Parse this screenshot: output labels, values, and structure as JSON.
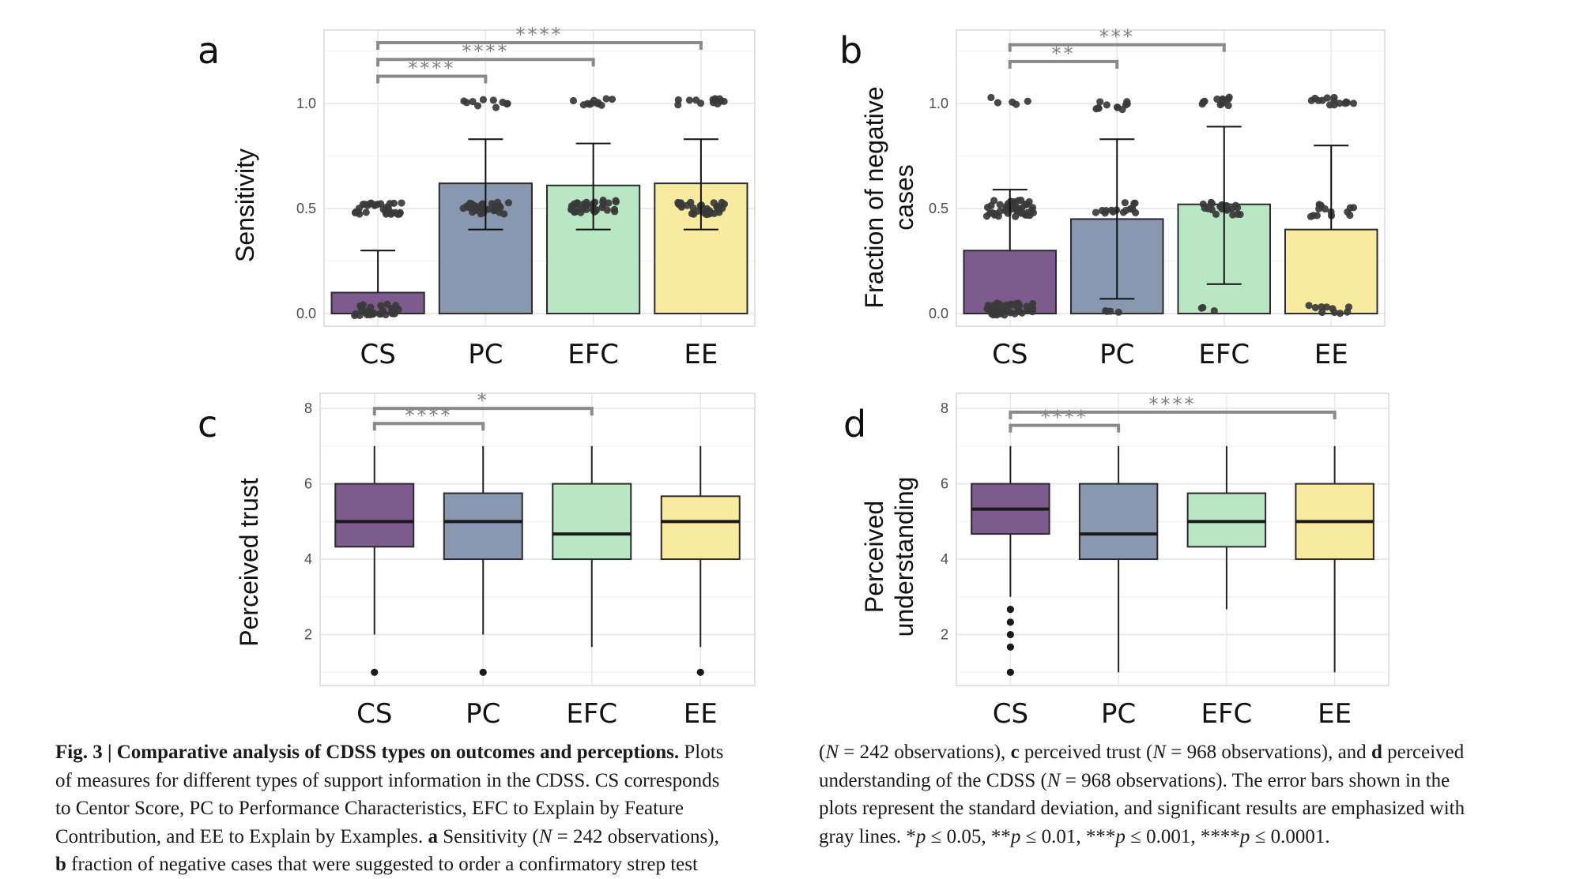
{
  "chart_data": [
    {
      "panel_label": "a",
      "type": "bar",
      "ylabel": [
        "Sensitivity"
      ],
      "categories": [
        "CS",
        "PC",
        "EFC",
        "EE"
      ],
      "values": [
        0.1,
        0.62,
        0.61,
        0.62
      ],
      "error_upper": [
        0.3,
        0.83,
        0.81,
        0.83
      ],
      "error_lower": [
        null,
        0.4,
        0.4,
        0.4
      ],
      "ylim": [
        -0.06,
        1.35
      ],
      "yticks": [
        0.0,
        0.5,
        1.0
      ],
      "ytick_labels": [
        "0.0",
        "0.5",
        "1.0"
      ],
      "colors": [
        "#7d5b8e",
        "#8898b1",
        "#b9e7c3",
        "#f8ea9e"
      ],
      "points": [
        {
          "category": 0,
          "clusters": [
            {
              "y": 0.02,
              "n": 28,
              "spread": 0.03
            },
            {
              "y": 0.5,
              "n": 30,
              "spread": 0.03
            }
          ]
        },
        {
          "category": 1,
          "clusters": [
            {
              "y": 0.5,
              "n": 30,
              "spread": 0.03
            },
            {
              "y": 1.0,
              "n": 10,
              "spread": 0.02
            }
          ]
        },
        {
          "category": 2,
          "clusters": [
            {
              "y": 0.51,
              "n": 34,
              "spread": 0.03
            },
            {
              "y": 1.01,
              "n": 11,
              "spread": 0.02
            }
          ]
        },
        {
          "category": 3,
          "clusters": [
            {
              "y": 0.5,
              "n": 34,
              "spread": 0.03
            },
            {
              "y": 1.01,
              "n": 13,
              "spread": 0.02
            }
          ]
        }
      ],
      "significance": [
        {
          "from": 0,
          "to": 1,
          "y": 1.13,
          "label": "****"
        },
        {
          "from": 0,
          "to": 2,
          "y": 1.21,
          "label": "****"
        },
        {
          "from": 0,
          "to": 3,
          "y": 1.29,
          "label": "****"
        }
      ]
    },
    {
      "panel_label": "b",
      "type": "bar",
      "ylabel": [
        "Fraction of negative",
        "cases"
      ],
      "categories": [
        "CS",
        "PC",
        "EFC",
        "EE"
      ],
      "values": [
        0.3,
        0.45,
        0.52,
        0.4
      ],
      "error_upper": [
        0.59,
        0.83,
        0.89,
        0.8
      ],
      "error_lower": [
        null,
        0.07,
        0.14,
        null
      ],
      "ylim": [
        -0.06,
        1.35
      ],
      "yticks": [
        0.0,
        0.5,
        1.0
      ],
      "ytick_labels": [
        "0.0",
        "0.5",
        "1.0"
      ],
      "colors": [
        "#7d5b8e",
        "#8898b1",
        "#b9e7c3",
        "#f8ea9e"
      ],
      "points": [
        {
          "category": 0,
          "clusters": [
            {
              "y": 0.02,
              "n": 36,
              "spread": 0.03
            },
            {
              "y": 0.5,
              "n": 46,
              "spread": 0.04
            },
            {
              "y": 1.01,
              "n": 5,
              "spread": 0.02
            }
          ]
        },
        {
          "category": 1,
          "clusters": [
            {
              "y": 0.01,
              "n": 4,
              "spread": 0.01
            },
            {
              "y": 0.5,
              "n": 16,
              "spread": 0.03
            },
            {
              "y": 0.99,
              "n": 11,
              "spread": 0.02
            }
          ]
        },
        {
          "category": 2,
          "clusters": [
            {
              "y": 0.02,
              "n": 3,
              "spread": 0.01
            },
            {
              "y": 0.5,
              "n": 20,
              "spread": 0.03
            },
            {
              "y": 1.01,
              "n": 14,
              "spread": 0.02
            }
          ]
        },
        {
          "category": 3,
          "clusters": [
            {
              "y": 0.02,
              "n": 10,
              "spread": 0.02
            },
            {
              "y": 0.49,
              "n": 14,
              "spread": 0.03
            },
            {
              "y": 1.01,
              "n": 14,
              "spread": 0.02
            }
          ]
        }
      ],
      "significance": [
        {
          "from": 0,
          "to": 1,
          "y": 1.2,
          "label": "**"
        },
        {
          "from": 0,
          "to": 2,
          "y": 1.28,
          "label": "***"
        }
      ]
    },
    {
      "panel_label": "c",
      "type": "box",
      "ylabel": [
        "Perceived trust"
      ],
      "categories": [
        "CS",
        "PC",
        "EFC",
        "EE"
      ],
      "ylim": [
        0.65,
        8.4
      ],
      "yticks": [
        2,
        4,
        6,
        8
      ],
      "ytick_labels": [
        "2",
        "4",
        "6",
        "8"
      ],
      "colors": [
        "#7d5b8e",
        "#8898b1",
        "#b9e7c3",
        "#f8ea9e"
      ],
      "boxes": [
        {
          "q1": 4.33,
          "median": 5.0,
          "q3": 6.0,
          "whisker_low": 2.0,
          "whisker_high": 7.0,
          "outliers": [
            1.0
          ]
        },
        {
          "q1": 4.0,
          "median": 5.0,
          "q3": 5.75,
          "whisker_low": 2.0,
          "whisker_high": 7.0,
          "outliers": [
            1.0
          ]
        },
        {
          "q1": 4.0,
          "median": 4.67,
          "q3": 6.0,
          "whisker_low": 1.67,
          "whisker_high": 7.0,
          "outliers": []
        },
        {
          "q1": 4.0,
          "median": 5.0,
          "q3": 5.67,
          "whisker_low": 1.67,
          "whisker_high": 7.0,
          "outliers": [
            1.0
          ]
        }
      ],
      "significance": [
        {
          "from": 0,
          "to": 1,
          "y": 7.6,
          "label": "****"
        },
        {
          "from": 0,
          "to": 2,
          "y": 8.0,
          "label": "*"
        }
      ]
    },
    {
      "panel_label": "d",
      "type": "box",
      "ylabel": [
        "Perceived",
        "understanding"
      ],
      "categories": [
        "CS",
        "PC",
        "EFC",
        "EE"
      ],
      "ylim": [
        0.65,
        8.4
      ],
      "yticks": [
        2,
        4,
        6,
        8
      ],
      "ytick_labels": [
        "2",
        "4",
        "6",
        "8"
      ],
      "colors": [
        "#7d5b8e",
        "#8898b1",
        "#b9e7c3",
        "#f8ea9e"
      ],
      "boxes": [
        {
          "q1": 4.67,
          "median": 5.33,
          "q3": 6.0,
          "whisker_low": 3.0,
          "whisker_high": 7.0,
          "outliers": [
            2.67,
            2.33,
            2.0,
            1.67,
            1.0
          ]
        },
        {
          "q1": 4.0,
          "median": 4.67,
          "q3": 6.0,
          "whisker_low": 1.0,
          "whisker_high": 7.0,
          "outliers": []
        },
        {
          "q1": 4.33,
          "median": 5.0,
          "q3": 5.75,
          "whisker_low": 2.67,
          "whisker_high": 7.0,
          "outliers": []
        },
        {
          "q1": 4.0,
          "median": 5.0,
          "q3": 6.0,
          "whisker_low": 1.0,
          "whisker_high": 7.0,
          "outliers": []
        }
      ],
      "significance": [
        {
          "from": 0,
          "to": 1,
          "y": 7.55,
          "label": "****"
        },
        {
          "from": 0,
          "to": 3,
          "y": 7.9,
          "label": "****"
        }
      ]
    }
  ],
  "caption": {
    "left_lines": [
      [
        {
          "t": "Fig. 3 | Comparative analysis of CDSS types on outcomes and perceptions.",
          "b": true
        },
        {
          "t": " Plots"
        }
      ],
      [
        {
          "t": "of measures for different types of support information in the CDSS. CS corresponds"
        }
      ],
      [
        {
          "t": "to Centor Score, PC to Performance Characteristics, EFC to Explain by Feature"
        }
      ],
      [
        {
          "t": "Contribution, and EE to Explain by Examples. "
        },
        {
          "t": "a",
          "b": true
        },
        {
          "t": " Sensitivity ("
        },
        {
          "t": "N",
          "i": true
        },
        {
          "t": " = 242 observations),"
        }
      ],
      [
        {
          "t": "b",
          "b": true
        },
        {
          "t": " fraction of negative cases that were suggested to order a confirmatory strep test"
        }
      ]
    ],
    "right_lines": [
      [
        {
          "t": "("
        },
        {
          "t": "N",
          "i": true
        },
        {
          "t": " = 242 observations), "
        },
        {
          "t": "c",
          "b": true
        },
        {
          "t": " perceived trust ("
        },
        {
          "t": "N",
          "i": true
        },
        {
          "t": " = 968 observations), and "
        },
        {
          "t": "d",
          "b": true
        },
        {
          "t": " perceived"
        }
      ],
      [
        {
          "t": "understanding of the CDSS ("
        },
        {
          "t": "N",
          "i": true
        },
        {
          "t": " = 968 observations). The error bars shown in the"
        }
      ],
      [
        {
          "t": "plots represent the standard deviation, and significant results are emphasized with"
        }
      ],
      [
        {
          "t": "gray lines. *"
        },
        {
          "t": "p",
          "i": true
        },
        {
          "t": " ≤ 0.05, **"
        },
        {
          "t": "p",
          "i": true
        },
        {
          "t": " ≤ 0.01, ***"
        },
        {
          "t": "p",
          "i": true
        },
        {
          "t": " ≤ 0.001, ****"
        },
        {
          "t": "p",
          "i": true
        },
        {
          "t": " ≤ 0.0001."
        }
      ]
    ]
  }
}
